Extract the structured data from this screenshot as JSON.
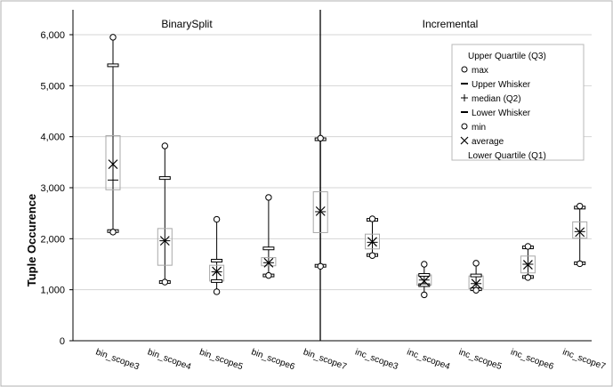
{
  "chart_data": {
    "type": "box",
    "ylabel": "Tuple Occurence",
    "ylim": [
      0,
      6000
    ],
    "yticks": [
      0,
      1000,
      2000,
      3000,
      4000,
      5000,
      6000
    ],
    "ytick_labels": [
      "0",
      "1,000",
      "2,000",
      "3,000",
      "4,000",
      "5,000",
      "6,000"
    ],
    "grid": true,
    "legend_position": "top-right",
    "panels": [
      "BinarySplit",
      "Incremental"
    ],
    "legend": [
      {
        "marker": "",
        "label": "Upper Quartile (Q3)"
      },
      {
        "marker": "o",
        "label": "max"
      },
      {
        "marker": "-",
        "label": "Upper Whisker"
      },
      {
        "marker": "+",
        "label": "median (Q2)"
      },
      {
        "marker": "-",
        "label": "Lower Whisker"
      },
      {
        "marker": "o",
        "label": "min"
      },
      {
        "marker": "x",
        "label": "average"
      },
      {
        "marker": "",
        "label": "Lower Quartile (Q1)"
      }
    ],
    "categories": [
      "bin_scope3",
      "bin_scope4",
      "bin_scope5",
      "bin_scope6",
      "bin_scope7",
      "inc_scope3",
      "inc_scope4",
      "inc_scope5",
      "inc_scope6",
      "inc_scope7"
    ],
    "boxes": [
      {
        "panel": 0,
        "max": 5950,
        "upper_whisker": 5400,
        "q3": 4020,
        "median": 3150,
        "q1": 2960,
        "lower_whisker": 2150,
        "min": 2130,
        "average": 3460
      },
      {
        "panel": 0,
        "max": 3820,
        "upper_whisker": 3190,
        "q3": 2200,
        "median": 1960,
        "q1": 1480,
        "lower_whisker": 1150,
        "min": 1150,
        "average": 1960
      },
      {
        "panel": 0,
        "max": 2380,
        "upper_whisker": 1570,
        "q3": 1480,
        "median": 1350,
        "q1": 1170,
        "lower_whisker": 1170,
        "min": 960,
        "average": 1360
      },
      {
        "panel": 0,
        "max": 2810,
        "upper_whisker": 1810,
        "q3": 1630,
        "median": 1530,
        "q1": 1470,
        "lower_whisker": 1280,
        "min": 1280,
        "average": 1530
      },
      {
        "panel": 0,
        "max": 3970,
        "upper_whisker": 3950,
        "q3": 2920,
        "median": 2530,
        "q1": 2120,
        "lower_whisker": 1470,
        "min": 1460,
        "average": 2540
      },
      {
        "panel": 1,
        "max": 2390,
        "upper_whisker": 2370,
        "q3": 2090,
        "median": 1930,
        "q1": 1800,
        "lower_whisker": 1680,
        "min": 1670,
        "average": 1940
      },
      {
        "panel": 1,
        "max": 1500,
        "upper_whisker": 1290,
        "q3": 1290,
        "median": 1190,
        "q1": 1090,
        "lower_whisker": 1090,
        "min": 900,
        "average": 1170
      },
      {
        "panel": 1,
        "max": 1520,
        "upper_whisker": 1280,
        "q3": 1270,
        "median": 1120,
        "q1": 1020,
        "lower_whisker": 1010,
        "min": 990,
        "average": 1120
      },
      {
        "panel": 1,
        "max": 1850,
        "upper_whisker": 1830,
        "q3": 1660,
        "median": 1500,
        "q1": 1330,
        "lower_whisker": 1250,
        "min": 1240,
        "average": 1490
      },
      {
        "panel": 1,
        "max": 2640,
        "upper_whisker": 2610,
        "q3": 2330,
        "median": 2140,
        "q1": 2010,
        "lower_whisker": 1520,
        "min": 1510,
        "average": 2130
      }
    ]
  }
}
